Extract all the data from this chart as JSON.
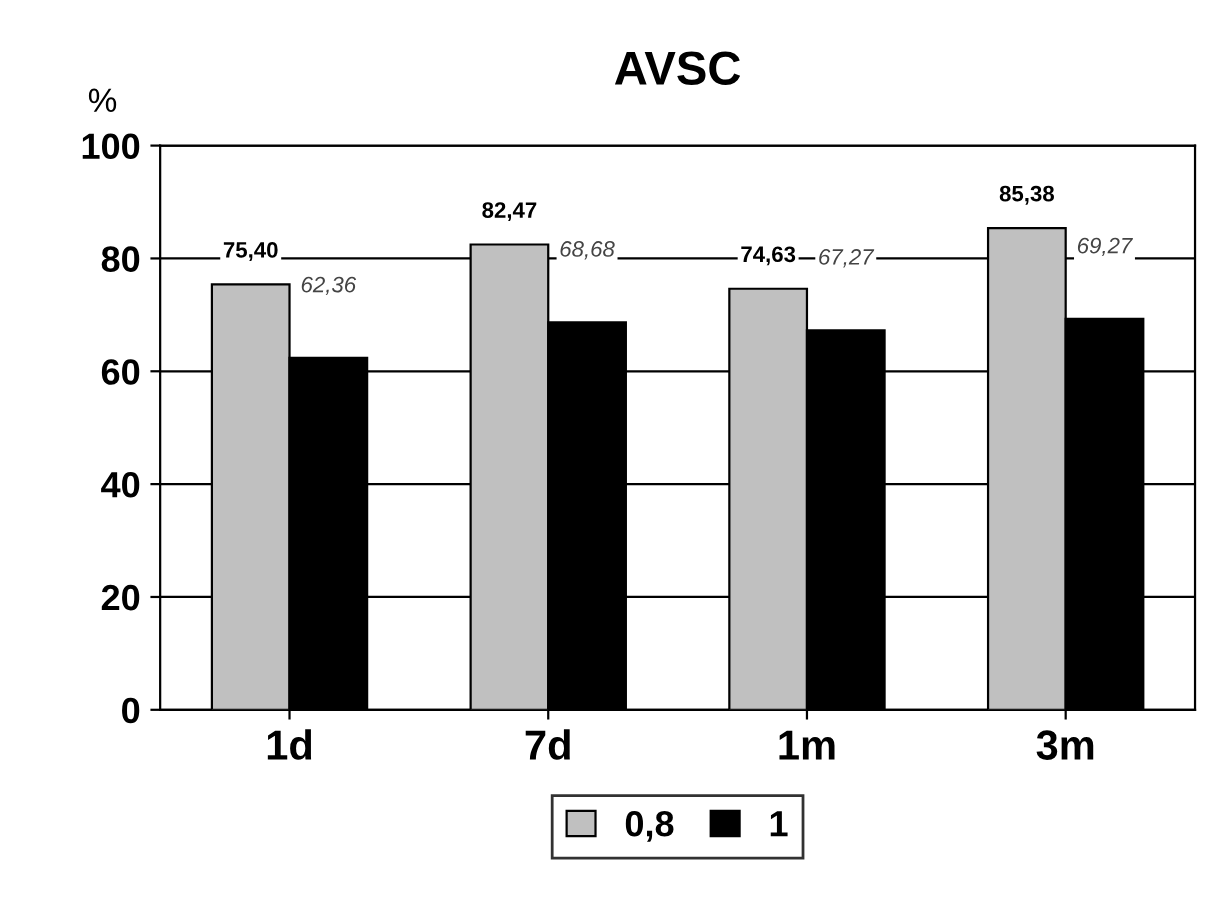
{
  "chart_data": {
    "type": "bar",
    "title": "AVSC",
    "ylabel": "%",
    "categories": [
      "1d",
      "7d",
      "1m",
      "3m"
    ],
    "series": [
      {
        "name": "0,8",
        "color": "#c0c0c0",
        "values": [
          75.4,
          82.47,
          74.63,
          85.38
        ],
        "value_labels": [
          "75,40",
          "82,47",
          "74,63",
          "85,38"
        ]
      },
      {
        "name": "1",
        "color": "#000000",
        "values": [
          62.36,
          68.68,
          67.27,
          69.27
        ],
        "value_labels": [
          "62,36",
          "68,68",
          "67,27",
          "69,27"
        ]
      }
    ],
    "ylim": [
      0,
      100
    ],
    "yticks": [
      0,
      20,
      40,
      60,
      80,
      100
    ],
    "grid": "y",
    "legend": "bottom"
  }
}
